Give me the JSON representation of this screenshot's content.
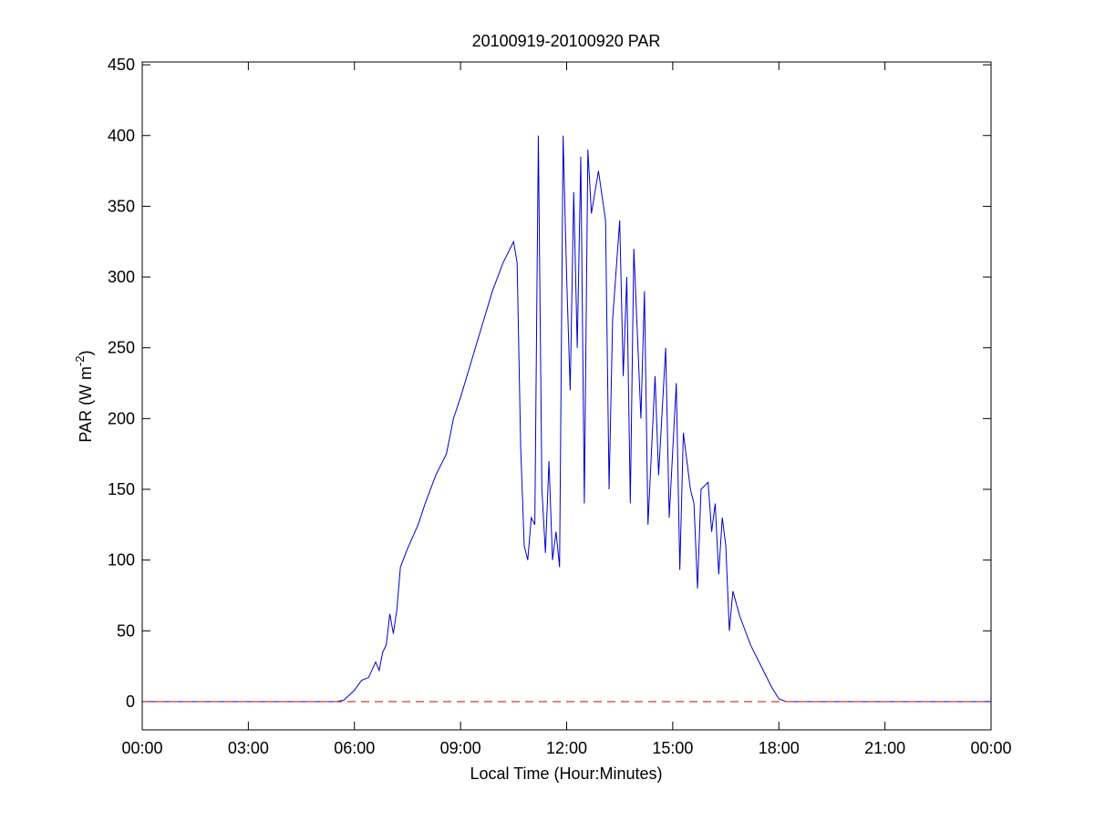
{
  "chart_data": {
    "type": "line",
    "title": "20100919-20100920 PAR",
    "xlabel": "Local Time (Hour:Minutes)",
    "ylabel": [
      "PAR (W m",
      "-2",
      ")"
    ],
    "xlim": [
      0,
      24
    ],
    "xticks": [
      {
        "value": 0,
        "label": "00:00"
      },
      {
        "value": 3,
        "label": "03:00"
      },
      {
        "value": 6,
        "label": "06:00"
      },
      {
        "value": 9,
        "label": "09:00"
      },
      {
        "value": 12,
        "label": "12:00"
      },
      {
        "value": 15,
        "label": "15:00"
      },
      {
        "value": 18,
        "label": "18:00"
      },
      {
        "value": 21,
        "label": "21:00"
      },
      {
        "value": 24,
        "label": "00:00"
      }
    ],
    "ylim": [
      -20,
      452
    ],
    "yticks": [
      0,
      50,
      100,
      150,
      200,
      250,
      300,
      350,
      400,
      450
    ],
    "reference_line": {
      "value": 0,
      "color": "#cc0000",
      "dashed": true
    },
    "series": [
      {
        "color": "#0000cc",
        "x": [
          0,
          5.5,
          5.7,
          6.0,
          6.2,
          6.4,
          6.6,
          6.7,
          6.8,
          6.9,
          7.0,
          7.1,
          7.2,
          7.3,
          7.5,
          7.8,
          8.0,
          8.3,
          8.6,
          8.8,
          9.0,
          9.3,
          9.6,
          9.9,
          10.2,
          10.5,
          10.6,
          10.7,
          10.8,
          10.9,
          11.0,
          11.1,
          11.2,
          11.3,
          11.4,
          11.5,
          11.6,
          11.7,
          11.8,
          11.9,
          12.0,
          12.1,
          12.2,
          12.3,
          12.4,
          12.5,
          12.6,
          12.7,
          12.9,
          13.1,
          13.2,
          13.3,
          13.5,
          13.6,
          13.7,
          13.8,
          13.9,
          14.1,
          14.2,
          14.3,
          14.5,
          14.6,
          14.8,
          14.9,
          15.1,
          15.2,
          15.3,
          15.5,
          15.6,
          15.7,
          15.8,
          16.0,
          16.1,
          16.2,
          16.3,
          16.4,
          16.5,
          16.6,
          16.7,
          16.9,
          17.2,
          17.5,
          17.8,
          18.0,
          18.2,
          24
        ],
        "values": [
          0,
          0,
          1,
          8,
          15,
          17,
          28,
          22,
          35,
          40,
          62,
          48,
          65,
          95,
          108,
          125,
          140,
          160,
          175,
          200,
          215,
          240,
          265,
          290,
          310,
          325,
          310,
          180,
          110,
          100,
          130,
          125,
          400,
          150,
          105,
          170,
          100,
          120,
          95,
          400,
          300,
          220,
          360,
          250,
          385,
          140,
          390,
          345,
          375,
          340,
          150,
          270,
          340,
          230,
          300,
          140,
          320,
          200,
          290,
          125,
          230,
          160,
          250,
          130,
          225,
          93,
          190,
          150,
          140,
          80,
          150,
          155,
          120,
          140,
          90,
          130,
          110,
          50,
          78,
          60,
          40,
          25,
          10,
          2,
          0,
          0
        ]
      }
    ]
  }
}
